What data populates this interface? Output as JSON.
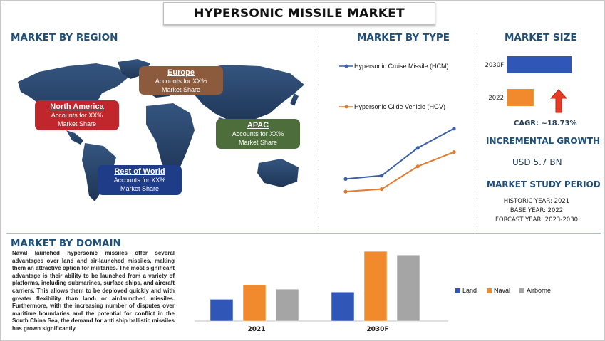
{
  "title": "HYPERSONIC MISSILE MARKET",
  "region": {
    "heading": "MARKET BY REGION",
    "callouts": [
      {
        "name": "North America",
        "text": "Accounts for XX%",
        "sub": "Market Share",
        "color": "#c0272d"
      },
      {
        "name": "Europe",
        "text": "Accounts for XX%",
        "sub": "Market Share",
        "color": "#8c5a3c"
      },
      {
        "name": "APAC",
        "text": "Accounts for XX%",
        "sub": "Market Share",
        "color": "#4d6d3a"
      },
      {
        "name": "Rest of World",
        "text": "Accounts for XX%",
        "sub": "Market Share",
        "color": "#1f3c88"
      }
    ]
  },
  "type": {
    "heading": "MARKET BY TYPE",
    "series": [
      {
        "name": "Hypersonic Cruise Missile (HCM)",
        "color": "#3a5fa8"
      },
      {
        "name": "Hypersonic Glide Vehicle (HGV)",
        "color": "#e07b30"
      }
    ]
  },
  "size": {
    "heading": "MARKET SIZE",
    "bars": [
      {
        "label": "2030F",
        "color": "#3056b8"
      },
      {
        "label": "2022",
        "color": "#f08a2c"
      }
    ],
    "cagr": "CAGR:  ~18.73%"
  },
  "growth": {
    "heading": "INCREMENTAL GROWTH",
    "value": "USD 5.7 BN"
  },
  "study": {
    "heading": "MARKET STUDY PERIOD",
    "historic": "HISTORIC YEAR: 2021",
    "base": "BASE YEAR: 2022",
    "forecast": "FORCAST YEAR: 2023-2030"
  },
  "domain": {
    "heading": "MARKET BY DOMAIN",
    "paragraph": "Naval launched hypersonic missiles offer several advantages over land and air-launched missiles, making them an attractive option for militaries. The most significant advantage is their ability to be launched from a variety of platforms, including submarines, surface ships, and aircraft carriers. This allows them to be deployed quickly and with greater flexibility than land- or air-launched missiles. Furthermore, with the increasing number of disputes over maritime boundaries and the potential for conflict in the South China Sea, the demand for anti ship ballistic missiles has grown significantly"
  },
  "chart_data": [
    {
      "type": "line",
      "x": [
        1,
        2,
        3,
        4
      ],
      "series": [
        {
          "name": "Hypersonic Cruise Missile (HCM)",
          "values": [
            2.0,
            2.4,
            5.7,
            8.0
          ]
        },
        {
          "name": "Hypersonic Glide Vehicle (HGV)",
          "values": [
            0.5,
            0.8,
            3.5,
            5.2
          ]
        }
      ],
      "ylim": [
        0,
        10
      ],
      "legend": "top",
      "grid": false
    },
    {
      "type": "bar",
      "orientation": "horizontal",
      "categories": [
        "2030F",
        "2022"
      ],
      "values": [
        100,
        41
      ],
      "ylim": [
        0,
        100
      ],
      "grid": false
    },
    {
      "type": "bar",
      "categories": [
        "2021",
        "2030F"
      ],
      "series": [
        {
          "name": "Land",
          "values": [
            30,
            40
          ],
          "color": "#3056b8"
        },
        {
          "name": "Naval",
          "values": [
            50,
            96
          ],
          "color": "#f08a2c"
        },
        {
          "name": "Airborne",
          "values": [
            44,
            91
          ],
          "color": "#a5a5a5"
        }
      ],
      "ylim": [
        0,
        100
      ],
      "legend": "right",
      "grid": false
    }
  ]
}
